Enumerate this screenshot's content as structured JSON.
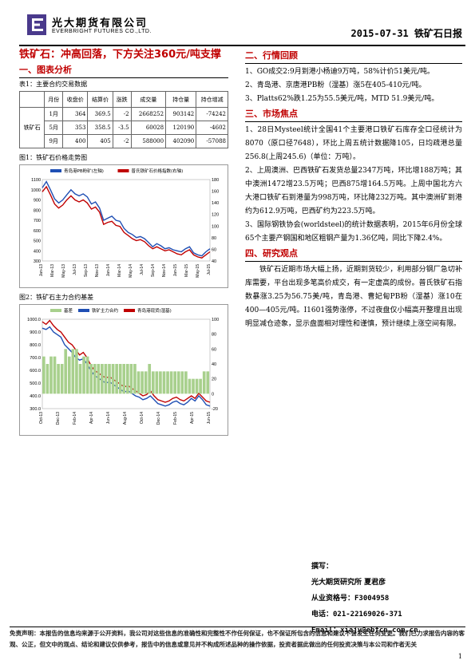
{
  "header": {
    "company_cn": "光大期货有限公司",
    "company_en": "EVERBRIGHT FUTURES CO.,LTD.",
    "date_title": "2015-07-31 铁矿石日报"
  },
  "left": {
    "main_title": "铁矿石：冲高回落，下方关注360元/吨支撑",
    "section1": "一、图表分析",
    "table_caption": "表1：主要合约交易数据",
    "table": {
      "headers": [
        "",
        "月份",
        "收盘价",
        "结算价",
        "涨跌",
        "成交量",
        "持仓量",
        "持仓增减"
      ],
      "product": "铁矿石",
      "rows": [
        [
          "1月",
          "364",
          "369.5",
          "-2",
          "2668252",
          "903142",
          "-74242"
        ],
        [
          "5月",
          "353",
          "358.5",
          "-3.5",
          "60028",
          "120190",
          "-4602"
        ],
        [
          "9月",
          "400",
          "405",
          "-2",
          "588000",
          "402090",
          "-57088"
        ]
      ]
    },
    "fig1_caption": "图1：铁矿石价格走势图",
    "fig2_caption": "图2：铁矿石主力合约基差"
  },
  "right": {
    "sec2": "二、行情回顾",
    "sec2_items": [
      "1、GO成交2:9月到港小杨迪9万吨，58%计价51美元/吨。",
      "2、青岛港、京唐港PB粉（湿基）涨5在405-410元/吨。",
      "3、Platts62%跌1.25为55.5美元/吨，MTD 51.9美元/吨。"
    ],
    "sec3": "三、市场焦点",
    "sec3_items": [
      "1、28日Mysteel统计全国41个主要港口铁矿石库存全口径统计为8070（原口径7648），环比上周五统计数据降105，日均疏港总量256.8(上周245.6)（单位：万吨）。",
      "2、上周澳洲、巴西铁矿石发货总量2347万吨，环比增188万吨；其中澳洲1472增23.5万吨；巴西875增164.5万吨。上周中国北方六大港口铁矿石到港量为998万吨，环比降232万吨。其中澳洲矿到港约为612.9万吨，巴西矿约为223.5万吨。",
      "3、国际钢铁协会(worldsteel)的统计数据表明，2015年6月份全球65个主要产钢国和地区粗钢产量为1.36亿吨，同比下降2.4%。"
    ],
    "sec4": "四、研究观点",
    "sec4_text": "铁矿石近期市场大幅上扬，近期到货较少，利用部分钢厂急切补库需要，平台出现多笔高价成交，有一定虚高的成份。普氏铁矿石指数暴涨3.25为56.75美/吨，青岛港、曹妃甸PB粉（湿基）涨10在400—405元/吨。I1601强势涨停，不过夜盘仅小幅高开整理且出现明显减仓迹象，显示盘面相对理性和谨慎，预计继续上涨空间有限。"
  },
  "author": {
    "label": "撰写：",
    "org": "光大期货研究所 夏君彦",
    "cert": "从业资格号：F3004958",
    "phone": "电话：021-22169026-371",
    "email": "Email：xiajy@ebfcn.com.cn"
  },
  "disclaimer": "免责声明：本报告的信息均来源于公开资料，我公司对这些信息的准确性和完整性不作任何保证，也不保证所包含的信息和建议不会发生任何变更。我们已力求报告内容的客观、公正，但文中的观点、结论和建议仅供参考，报告中的信息或意见并不构成所述品种的操作依据，投资者据此做出的任何投资决策与本公司和作者无关",
  "page_number": "1",
  "colors": {
    "accent": "#c00000",
    "series_blue": "#1f4fb4",
    "series_red": "#c00000",
    "basis_green": "#a8d08d"
  },
  "chart_data": [
    {
      "type": "line",
      "title": "",
      "legend": [
        "青岛港PB粉矿(左轴)",
        "普氏铁矿石价格指数(右轴)"
      ],
      "x_ticks": [
        "Jan-13",
        "Mar-13",
        "May-13",
        "Jul-13",
        "Sep-13",
        "Nov-13",
        "Jan-14",
        "Mar-14",
        "May-14",
        "Jul-14",
        "Sep-14",
        "Nov-14",
        "Jan-15",
        "Mar-15",
        "May-15",
        "Jul-15"
      ],
      "y_left_ticks": [
        "1100",
        "1000",
        "900",
        "800",
        "700",
        "600",
        "500",
        "400",
        "300"
      ],
      "y_right_ticks": [
        "180",
        "160",
        "140",
        "120",
        "100",
        "80",
        "60",
        "40"
      ],
      "ylim_left": [
        300,
        1100
      ],
      "ylim_right": [
        40,
        180
      ],
      "series": [
        {
          "name": "青岛港PB粉矿(左轴)",
          "axis": "left",
          "values": [
            1020,
            1080,
            1000,
            910,
            870,
            900,
            950,
            1000,
            960,
            940,
            960,
            930,
            860,
            880,
            820,
            700,
            720,
            740,
            700,
            690,
            620,
            580,
            560,
            530,
            540,
            520,
            480,
            440,
            470,
            450,
            420,
            430,
            410,
            400,
            390,
            420,
            440,
            380,
            360,
            350,
            390,
            420
          ]
        },
        {
          "name": "普氏铁矿石价格指数(右轴)",
          "axis": "left",
          "values": [
            980,
            1030,
            950,
            860,
            820,
            850,
            900,
            940,
            900,
            880,
            900,
            870,
            810,
            830,
            780,
            660,
            680,
            690,
            650,
            640,
            580,
            550,
            520,
            500,
            510,
            490,
            450,
            420,
            440,
            420,
            400,
            410,
            390,
            370,
            360,
            390,
            410,
            360,
            340,
            330,
            360,
            390
          ]
        }
      ]
    },
    {
      "type": "line",
      "title": "",
      "legend": [
        "基差",
        "铁矿主力合约",
        "青岛港现货(湿基)"
      ],
      "x_ticks": [
        "Oct-13",
        "Dec-13",
        "Feb-14",
        "Apr-14",
        "Jun-14",
        "Aug-14",
        "Oct-14",
        "Dec-14",
        "Feb-15",
        "Apr-15",
        "Jun-15"
      ],
      "y_left_ticks": [
        "1000.0",
        "900.0",
        "800.0",
        "700.0",
        "600.0",
        "500.0",
        "400.0",
        "300.0"
      ],
      "y_right_ticks": [
        "100",
        "80",
        "60",
        "40",
        "20",
        "0",
        "-20"
      ],
      "ylim_left": [
        300,
        1000
      ],
      "ylim_right": [
        -20,
        100
      ],
      "series": [
        {
          "name": "铁矿主力合约",
          "values": [
            930,
            920,
            940,
            900,
            880,
            860,
            800,
            770,
            740,
            700,
            680,
            690,
            650,
            600,
            560,
            540,
            520,
            500,
            510,
            490,
            470,
            450,
            430,
            440,
            420,
            400,
            390,
            370,
            380,
            400,
            370,
            340,
            330,
            320,
            330,
            350,
            360,
            340,
            330,
            350,
            380,
            360,
            400,
            370,
            330,
            320
          ]
        },
        {
          "name": "青岛港现货(湿基)",
          "values": [
            980,
            960,
            990,
            950,
            920,
            900,
            860,
            820,
            800,
            760,
            720,
            740,
            700,
            640,
            600,
            580,
            560,
            540,
            550,
            530,
            510,
            490,
            470,
            480,
            460,
            440,
            420,
            400,
            410,
            440,
            400,
            370,
            360,
            350,
            360,
            380,
            390,
            370,
            360,
            380,
            400,
            380,
            420,
            390,
            360,
            350
          ]
        },
        {
          "name": "基差",
          "values": [
            50,
            40,
            50,
            50,
            40,
            40,
            60,
            50,
            60,
            60,
            40,
            50,
            50,
            40,
            40,
            40,
            40,
            40,
            40,
            40,
            40,
            40,
            40,
            40,
            40,
            40,
            30,
            30,
            30,
            40,
            30,
            30,
            30,
            30,
            30,
            30,
            30,
            30,
            30,
            30,
            20,
            20,
            20,
            20,
            30,
            30
          ]
        }
      ]
    }
  ]
}
